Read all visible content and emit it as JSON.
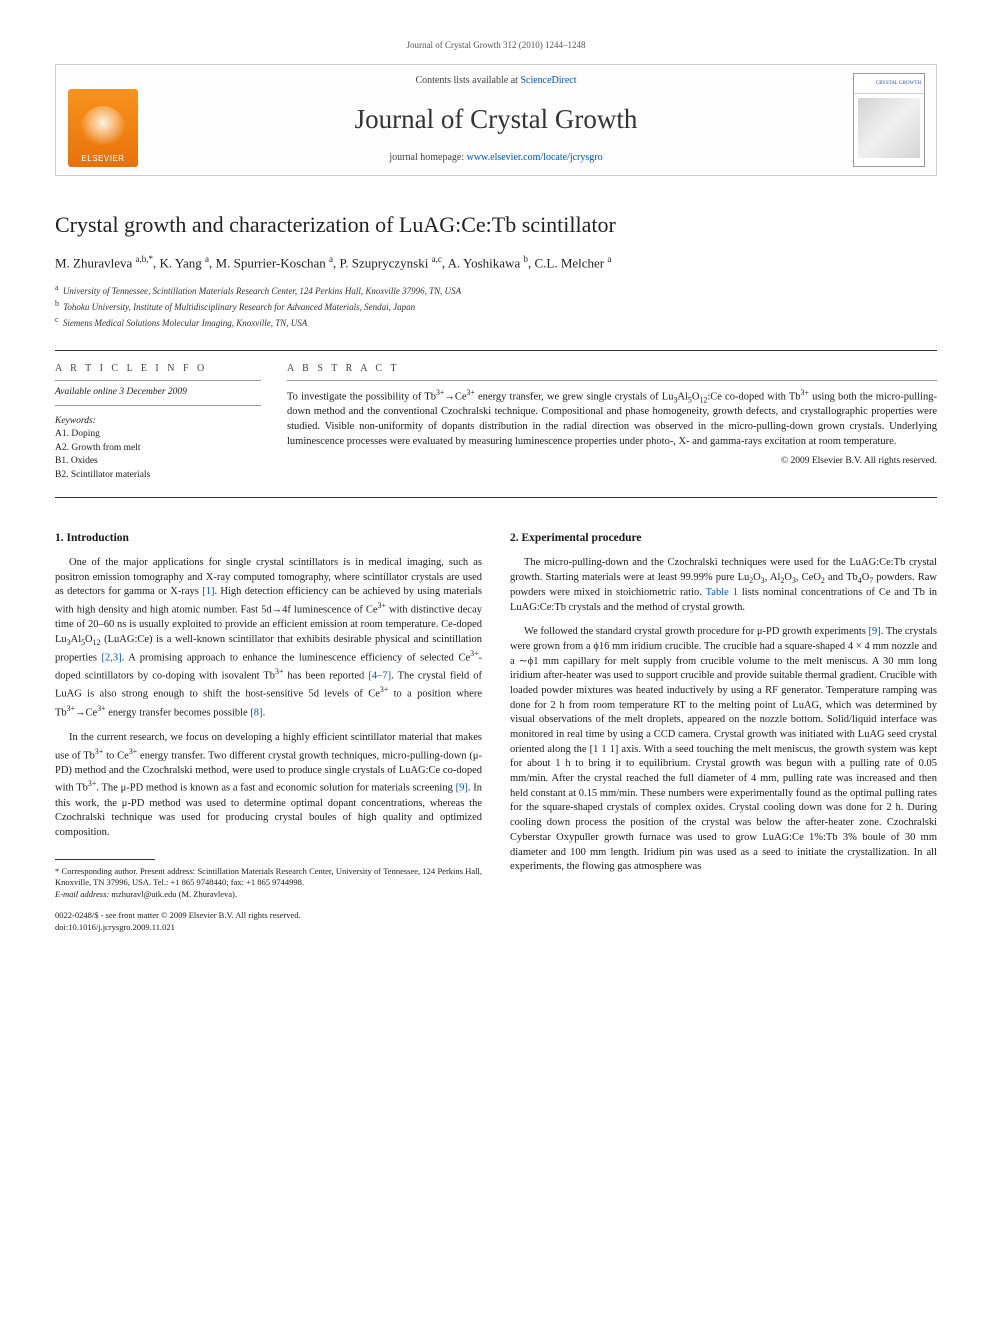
{
  "page_header": "Journal of Crystal Growth 312 (2010) 1244–1248",
  "banner": {
    "contents_prefix": "Contents lists available at ",
    "contents_link": "ScienceDirect",
    "journal_name": "Journal of Crystal Growth",
    "homepage_prefix": "journal homepage: ",
    "homepage_url": "www.elsevier.com/locate/jcrysgro",
    "publisher_name": "ELSEVIER",
    "cover_title": "CRYSTAL GROWTH"
  },
  "article": {
    "title": "Crystal growth and characterization of LuAG:Ce:Tb scintillator",
    "authors_html": "M. Zhuravleva <sup>a,b,*</sup>, K. Yang <sup>a</sup>, M. Spurrier-Koschan <sup>a</sup>, P. Szupryczynski <sup>a,c</sup>, A. Yoshikawa <sup>b</sup>, C.L. Melcher <sup>a</sup>",
    "affiliations": [
      {
        "sup": "a",
        "text": "University of Tennessee, Scintillation Materials Research Center, 124 Perkins Hall, Knoxville 37996, TN, USA"
      },
      {
        "sup": "b",
        "text": "Tohoku University, Institute of Multidisciplinary Research for Advanced Materials, Sendai, Japan"
      },
      {
        "sup": "c",
        "text": "Siemens Medical Solutions Molecular Imaging, Knoxville, TN, USA"
      }
    ]
  },
  "meta": {
    "info_heading": "A R T I C L E  I N F O",
    "available": "Available online 3 December 2009",
    "keywords_label": "Keywords:",
    "keywords": [
      "A1. Doping",
      "A2. Growth from melt",
      "B1. Oxides",
      "B2. Scintillator materials"
    ]
  },
  "abstract": {
    "heading": "A B S T R A C T",
    "text_html": "To investigate the possibility of Tb<sup>3+</sup>→Ce<sup>3+</sup> energy transfer, we grew single crystals of Lu<sub>3</sub>Al<sub>5</sub>O<sub>12</sub>:Ce co-doped with Tb<sup>3+</sup> using both the micro-pulling-down method and the conventional Czochralski technique. Compositional and phase homogeneity, growth defects, and crystallographic properties were studied. Visible non-uniformity of dopants distribution in the radial direction was observed in the micro-pulling-down grown crystals. Underlying luminescence processes were evaluated by measuring luminescence properties under photo-, X- and gamma-rays excitation at room temperature.",
    "copyright": "© 2009 Elsevier B.V. All rights reserved."
  },
  "sections": {
    "intro_head": "1.  Introduction",
    "intro_p1_html": "One of the major applications for single crystal scintillators is in medical imaging, such as positron emission tomography and X-ray computed tomography, where scintillator crystals are used as detectors for gamma or X-rays <span class=\"ref-link\">[1]</span>. High detection efficiency can be achieved by using materials with high density and high atomic number. Fast 5d→4f luminescence of Ce<sup>3+</sup> with distinctive decay time of 20–60 ns is usually exploited to provide an efficient emission at room temperature. Ce-doped Lu<sub>3</sub>Al<sub>5</sub>O<sub>12</sub> (LuAG:Ce) is a well-known scintillator that exhibits desirable physical and scintillation properties <span class=\"ref-link\">[2,3]</span>. A promising approach to enhance the luminescence efficiency of selected Ce<sup>3+</sup>-doped scintillators by co-doping with isovalent Tb<sup>3+</sup> has been reported <span class=\"ref-link\">[4–7]</span>. The crystal field of LuAG is also strong enough to shift the host-sensitive 5d levels of Ce<sup>3+</sup> to a position where Tb<sup>3+</sup>→Ce<sup>3+</sup> energy transfer becomes possible <span class=\"ref-link\">[8]</span>.",
    "intro_p2_html": "In the current research, we focus on developing a highly efficient scintillator material that makes use of Tb<sup>3+</sup> to Ce<sup>3+</sup> energy transfer. Two different crystal growth techniques, micro-pulling-down (μ-PD) method and the Czochralski method, were used to produce single crystals of LuAG:Ce co-doped with Tb<sup>3+</sup>. The μ-PD method is known as a fast and economic solution for materials screening <span class=\"ref-link\">[9]</span>. In this work, the μ-PD method was used to determine optimal dopant concentrations, whereas the Czochralski technique was used for producing crystal boules of high quality and optimized composition.",
    "exp_head": "2.  Experimental procedure",
    "exp_p1_html": "The micro-pulling-down and the Czochralski techniques were used for the LuAG:Ce:Tb crystal growth. Starting materials were at least 99.99% pure Lu<sub>2</sub>O<sub>3</sub>, Al<sub>2</sub>O<sub>3</sub>, CeO<sub>2</sub> and Tb<sub>4</sub>O<sub>7</sub> powders. Raw powders were mixed in stoichiometric ratio. <span class=\"ref-link\">Table 1</span> lists nominal concentrations of Ce and Tb in LuAG:Ce:Tb crystals and the method of crystal growth.",
    "exp_p2_html": "We followed the standard crystal growth procedure for μ-PD growth experiments <span class=\"ref-link\">[9]</span>. The crystals were grown from a ϕ16 mm iridium crucible. The crucible had a square-shaped 4 × 4 mm nozzle and a ∼ϕ1 mm capillary for melt supply from crucible volume to the melt meniscus. A 30 mm long iridium after-heater was used to support crucible and provide suitable thermal gradient. Crucible with loaded powder mixtures was heated inductively by using a RF generator. Temperature ramping was done for 2 h from room temperature RT to the melting point of LuAG, which was determined by visual observations of the melt droplets, appeared on the nozzle bottom. Solid/liquid interface was monitored in real time by using a CCD camera. Crystal growth was initiated with LuAG seed crystal oriented along the [1 1 1] axis. With a seed touching the melt meniscus, the growth system was kept for about 1 h to bring it to equilibrium. Crystal growth was begun with a pulling rate of 0.05 mm/min. After the crystal reached the full diameter of 4 mm, pulling rate was increased and then held constant at 0.15 mm/min. These numbers were experimentally found as the optimal pulling rates for the square-shaped crystals of complex oxides. Crystal cooling down was done for 2 h. During cooling down process the position of the crystal was below the after-heater zone. Czochralski Cyberstar Oxypuller growth furnace was used to grow LuAG:Ce 1%:Tb 3% boule of 30 mm diameter and 100 mm length. Iridium pin was used as a seed to initiate the crystallization. In all experiments, the flowing gas atmosphere was"
  },
  "footnotes": {
    "corr_html": "* Corresponding author. Present address: Scintillation Materials Research Center, University of Tennessee, 124 Perkins Hall, Knoxville, TN 37996, USA. Tel.: +1 865 9748440; fax: +1 865 9744998.",
    "email_label": "E-mail address:",
    "email": "mzhuravl@utk.edu (M. Zhuravleva).",
    "front_matter": "0022-0248/$ - see front matter © 2009 Elsevier B.V. All rights reserved.",
    "doi": "doi:10.1016/j.jcrysgro.2009.11.021"
  },
  "colors": {
    "link": "#0056b3",
    "elsevier_orange": "#f7941d",
    "text": "#1a1a1a",
    "border": "#cbcbcb"
  },
  "typography": {
    "body_pt": 10.5,
    "title_pt": 22,
    "journal_name_pt": 27,
    "footnote_pt": 8.5
  }
}
